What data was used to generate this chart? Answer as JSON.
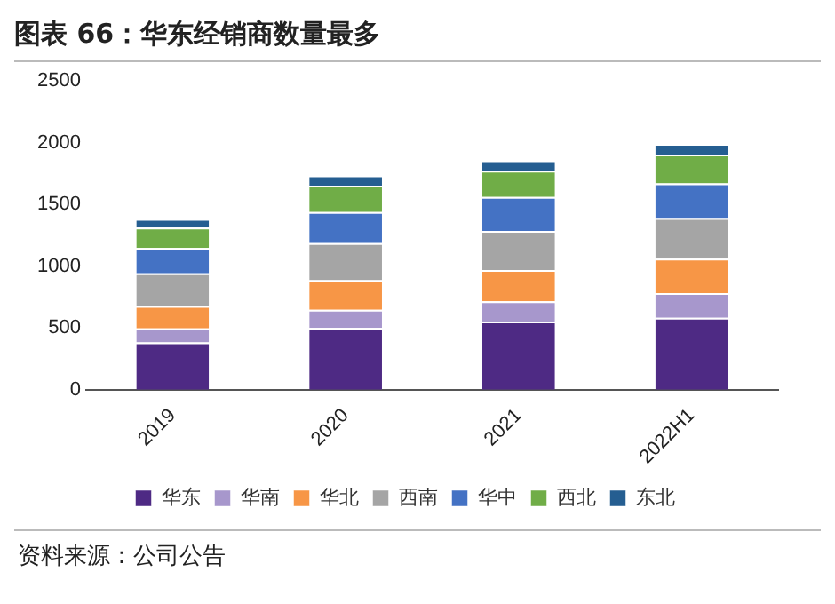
{
  "chart_data": {
    "type": "bar",
    "title": "图表 66：华东经销商数量最多",
    "categories": [
      "2019",
      "2020",
      "2021",
      "2022H1"
    ],
    "stacked": true,
    "series": [
      {
        "name": "华东",
        "color": "#4e2a84",
        "values": [
          383,
          500,
          552,
          583
        ]
      },
      {
        "name": "华南",
        "color": "#a797cc",
        "values": [
          113,
          148,
          165,
          200
        ]
      },
      {
        "name": "华北",
        "color": "#f79646",
        "values": [
          182,
          239,
          253,
          278
        ]
      },
      {
        "name": "西南",
        "color": "#a5a5a5",
        "values": [
          265,
          300,
          317,
          330
        ]
      },
      {
        "name": "华中",
        "color": "#4472c4",
        "values": [
          205,
          252,
          274,
          279
        ]
      },
      {
        "name": "西北",
        "color": "#70ad47",
        "values": [
          165,
          213,
          213,
          234
        ]
      },
      {
        "name": "东北",
        "color": "#255e91",
        "values": [
          70,
          83,
          83,
          87
        ]
      }
    ],
    "ylim": [
      0,
      2500
    ],
    "yticks": [
      0,
      500,
      1000,
      1500,
      2000,
      2500
    ],
    "grid": false,
    "legend": "bottom",
    "annotations": [
      "资料来源：公司公告"
    ]
  }
}
